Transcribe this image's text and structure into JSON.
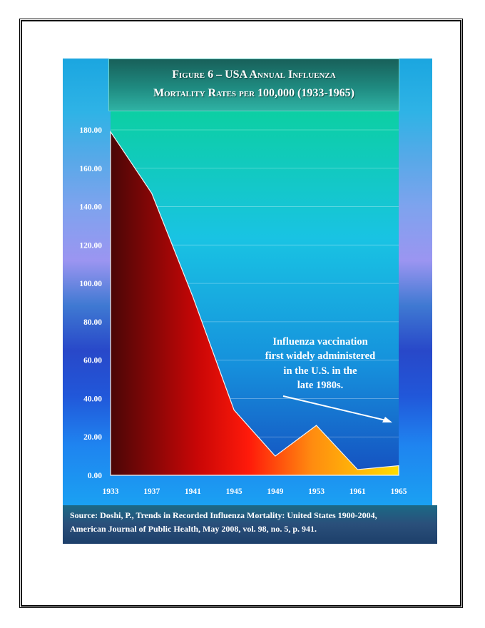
{
  "title": {
    "line1": "Figure 6 – USA Annual Influenza",
    "line2": "Mortality Rates per 100,000 (1933-1965)"
  },
  "source": {
    "line1": "Source:  Doshi, P., Trends in Recorded Influenza Mortality: United States 1900-2004,",
    "line2": "American Journal of Public Health, May 2008, vol. 98, no. 5, p. 941."
  },
  "chart_data": {
    "type": "area",
    "categories": [
      "1933",
      "1937",
      "1941",
      "1945",
      "1949",
      "1953",
      "1961",
      "1965"
    ],
    "values": [
      179,
      147,
      93,
      34,
      10,
      26,
      3,
      5
    ],
    "yticks": [
      "0.00",
      "20.00",
      "40.00",
      "60.00",
      "80.00",
      "100.00",
      "120.00",
      "140.00",
      "160.00",
      "180.00"
    ],
    "ylim": [
      0,
      180
    ],
    "grid": true,
    "annotation": {
      "lines": [
        "Influenza vaccination",
        "first widely administered",
        "in the U.S. in the",
        "late 1980s."
      ]
    },
    "colors": {
      "area_start": "#5a0a0a",
      "area_mid": "#e80808",
      "area_end": "#ffd700",
      "plot_top": "#12d3a6",
      "plot_mid": "#19b8e8",
      "plot_bottom": "#1657c4"
    }
  }
}
